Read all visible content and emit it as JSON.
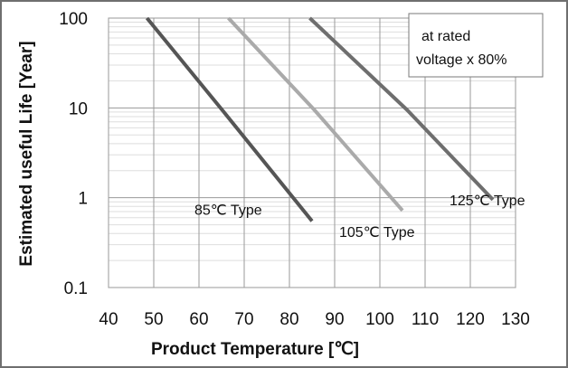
{
  "chart_data": {
    "type": "line",
    "title": "",
    "xlabel": "Product Temperature [℃]",
    "ylabel": "Estimated useful Life [Year]",
    "yscale": "log",
    "xlim": [
      40,
      130
    ],
    "ylim": [
      0.1,
      100
    ],
    "x_ticks": [
      "40",
      "50",
      "60",
      "70",
      "80",
      "90",
      "100",
      "110",
      "120",
      "130"
    ],
    "y_ticks": [
      "0.1",
      "1",
      "10",
      "100"
    ],
    "grid": true,
    "annotation": [
      "at rated",
      "voltage x 80%"
    ],
    "series": [
      {
        "name": "85℃ Type",
        "color": "#555555",
        "x": [
          48.5,
          65.5,
          85
        ],
        "y": [
          100,
          9,
          0.55
        ]
      },
      {
        "name": "105℃ Type",
        "color": "#aaaaaa",
        "x": [
          66.5,
          85.5,
          105
        ],
        "y": [
          100,
          9.5,
          0.72
        ]
      },
      {
        "name": "125℃ Type",
        "color": "#6e6e6e",
        "x": [
          84.5,
          106,
          125
        ],
        "y": [
          100,
          9.5,
          0.95
        ]
      }
    ]
  }
}
